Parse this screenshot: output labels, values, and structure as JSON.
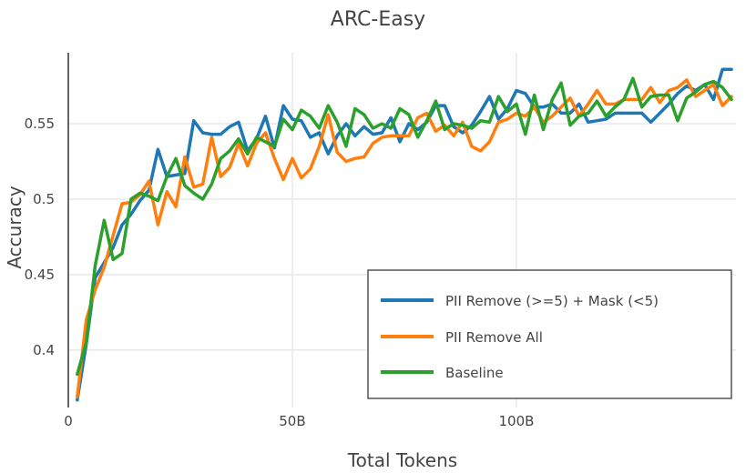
{
  "chart_data": {
    "type": "line",
    "title": "ARC-Easy",
    "xlabel": "Total Tokens",
    "ylabel": "Accuracy",
    "xlim": [
      0,
      149
    ],
    "ylim": [
      0.362,
      0.597
    ],
    "x_ticks": [
      {
        "value": 0,
        "label": "0"
      },
      {
        "value": 50,
        "label": "50B"
      },
      {
        "value": 100,
        "label": "100B"
      }
    ],
    "y_ticks": [
      {
        "value": 0.4,
        "label": "0.4"
      },
      {
        "value": 0.45,
        "label": "0.45"
      },
      {
        "value": 0.5,
        "label": "0.5"
      },
      {
        "value": 0.55,
        "label": "0.55"
      }
    ],
    "grid": true,
    "legend_position": "bottom-right",
    "x": [
      2,
      4,
      6,
      8,
      10,
      12,
      14,
      16,
      18,
      20,
      22,
      24,
      26,
      28,
      30,
      32,
      34,
      36,
      38,
      40,
      42,
      44,
      46,
      48,
      50,
      52,
      54,
      56,
      58,
      60,
      62,
      64,
      66,
      68,
      70,
      72,
      74,
      76,
      78,
      80,
      82,
      84,
      86,
      88,
      90,
      92,
      94,
      96,
      98,
      100,
      102,
      104,
      106,
      108,
      110,
      112,
      114,
      116,
      118,
      120,
      122,
      124,
      126,
      128,
      130,
      132,
      134,
      136,
      138,
      140,
      142,
      144,
      146,
      148
    ],
    "series": [
      {
        "name": "PII Remove (>=5) + Mask (<5)",
        "color": "#1f77b4",
        "values": [
          0.367,
          0.404,
          0.448,
          0.458,
          0.468,
          0.483,
          0.49,
          0.499,
          0.506,
          0.533,
          0.515,
          0.516,
          0.517,
          0.552,
          0.544,
          0.543,
          0.543,
          0.548,
          0.551,
          0.532,
          0.54,
          0.555,
          0.534,
          0.562,
          0.553,
          0.552,
          0.541,
          0.544,
          0.53,
          0.542,
          0.55,
          0.542,
          0.548,
          0.543,
          0.544,
          0.554,
          0.538,
          0.55,
          0.546,
          0.551,
          0.562,
          0.562,
          0.548,
          0.544,
          0.549,
          0.558,
          0.568,
          0.553,
          0.56,
          0.572,
          0.57,
          0.561,
          0.561,
          0.563,
          0.557,
          0.557,
          0.563,
          0.551,
          0.552,
          0.553,
          0.557,
          0.557,
          0.557,
          0.557,
          0.551,
          0.557,
          0.563,
          0.57,
          0.575,
          0.572,
          0.576,
          0.566,
          0.586,
          0.586
        ]
      },
      {
        "name": "PII Remove All",
        "color": "#ff7f0e",
        "values": [
          0.369,
          0.42,
          0.44,
          0.455,
          0.476,
          0.497,
          0.498,
          0.503,
          0.512,
          0.483,
          0.505,
          0.495,
          0.528,
          0.508,
          0.51,
          0.541,
          0.515,
          0.521,
          0.537,
          0.522,
          0.537,
          0.544,
          0.527,
          0.513,
          0.527,
          0.514,
          0.52,
          0.535,
          0.556,
          0.531,
          0.525,
          0.527,
          0.528,
          0.537,
          0.541,
          0.542,
          0.542,
          0.542,
          0.554,
          0.557,
          0.545,
          0.549,
          0.542,
          0.551,
          0.535,
          0.532,
          0.538,
          0.551,
          0.553,
          0.557,
          0.555,
          0.561,
          0.551,
          0.555,
          0.561,
          0.567,
          0.555,
          0.563,
          0.572,
          0.563,
          0.563,
          0.566,
          0.566,
          0.566,
          0.574,
          0.564,
          0.572,
          0.574,
          0.579,
          0.568,
          0.572,
          0.576,
          0.562,
          0.568
        ]
      },
      {
        "name": "Baseline",
        "color": "#2ca02c",
        "values": [
          0.384,
          0.405,
          0.456,
          0.486,
          0.46,
          0.464,
          0.5,
          0.504,
          0.502,
          0.499,
          0.515,
          0.527,
          0.509,
          0.504,
          0.5,
          0.51,
          0.527,
          0.532,
          0.54,
          0.53,
          0.541,
          0.538,
          0.535,
          0.553,
          0.546,
          0.559,
          0.555,
          0.547,
          0.562,
          0.551,
          0.535,
          0.56,
          0.556,
          0.547,
          0.55,
          0.547,
          0.56,
          0.556,
          0.541,
          0.552,
          0.565,
          0.546,
          0.55,
          0.549,
          0.547,
          0.552,
          0.551,
          0.568,
          0.558,
          0.563,
          0.543,
          0.569,
          0.546,
          0.566,
          0.577,
          0.549,
          0.555,
          0.557,
          0.565,
          0.555,
          0.561,
          0.566,
          0.58,
          0.561,
          0.568,
          0.569,
          0.569,
          0.552,
          0.567,
          0.571,
          0.576,
          0.578,
          0.574,
          0.566
        ]
      }
    ]
  }
}
